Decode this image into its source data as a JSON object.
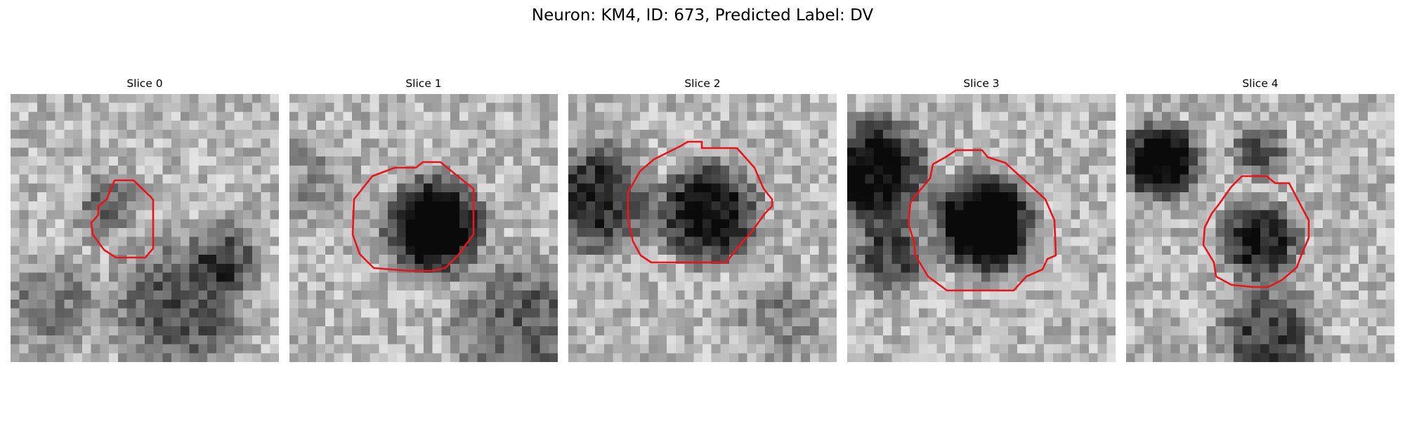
{
  "figure": {
    "title": "Neuron: KM4, ID: 673, Predicted Label: DV"
  },
  "colors": {
    "background": "#ffffff",
    "contour": "#e8161b",
    "grayscale_dark": "#111111",
    "grayscale_light": "#f2f2f2"
  },
  "slices": [
    {
      "title": "Slice 0",
      "seed": 11
    },
    {
      "title": "Slice 1",
      "seed": 23
    },
    {
      "title": "Slice 2",
      "seed": 37
    },
    {
      "title": "Slice 3",
      "seed": 51
    },
    {
      "title": "Slice 4",
      "seed": 67
    }
  ]
}
